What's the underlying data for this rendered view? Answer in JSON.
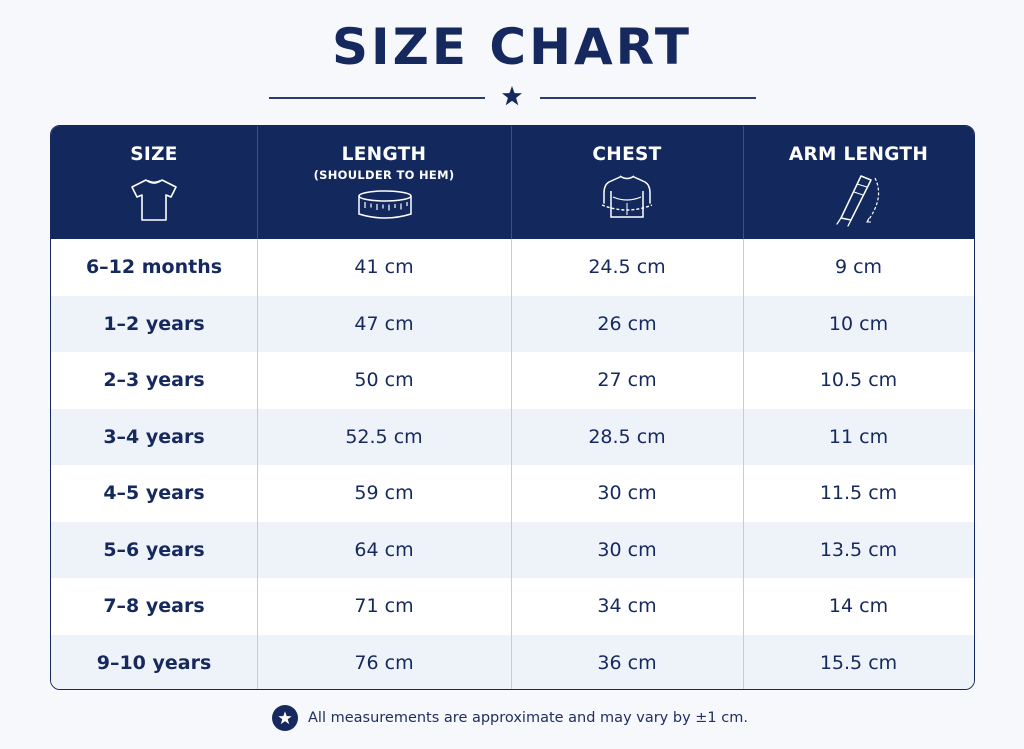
{
  "title": "SIZE CHART",
  "colors": {
    "navy": "#13295e",
    "row_alt": "#eef2f9",
    "background": "#f7f8fb"
  },
  "header": {
    "columns": [
      {
        "label": "SIZE",
        "sublabel": "",
        "icon": "tshirt-icon"
      },
      {
        "label": "LENGTH",
        "sublabel": "(SHOULDER TO HEM)",
        "icon": "measuring-tape-icon"
      },
      {
        "label": "CHEST",
        "sublabel": "",
        "icon": "torso-icon"
      },
      {
        "label": "ARM LENGTH",
        "sublabel": "",
        "icon": "arm-measure-icon"
      }
    ]
  },
  "rows": [
    {
      "size": "6–12 months",
      "length": "41 cm",
      "chest": "24.5 cm",
      "arm": "9 cm"
    },
    {
      "size": "1–2 years",
      "length": "47 cm",
      "chest": "26 cm",
      "arm": "10 cm"
    },
    {
      "size": "2–3 years",
      "length": "50 cm",
      "chest": "27 cm",
      "arm": "10.5 cm"
    },
    {
      "size": "3–4 years",
      "length": "52.5 cm",
      "chest": "28.5 cm",
      "arm": "11 cm"
    },
    {
      "size": "4–5 years",
      "length": "59 cm",
      "chest": "30 cm",
      "arm": "11.5 cm"
    },
    {
      "size": "5–6 years",
      "length": "64 cm",
      "chest": "30 cm",
      "arm": "13.5 cm"
    },
    {
      "size": "7–8 years",
      "length": "71 cm",
      "chest": "34 cm",
      "arm": "14 cm"
    },
    {
      "size": "9–10 years",
      "length": "76 cm",
      "chest": "36 cm",
      "arm": "15.5 cm"
    }
  ],
  "footnote": "All measurements are approximate and may vary by ±1 cm."
}
